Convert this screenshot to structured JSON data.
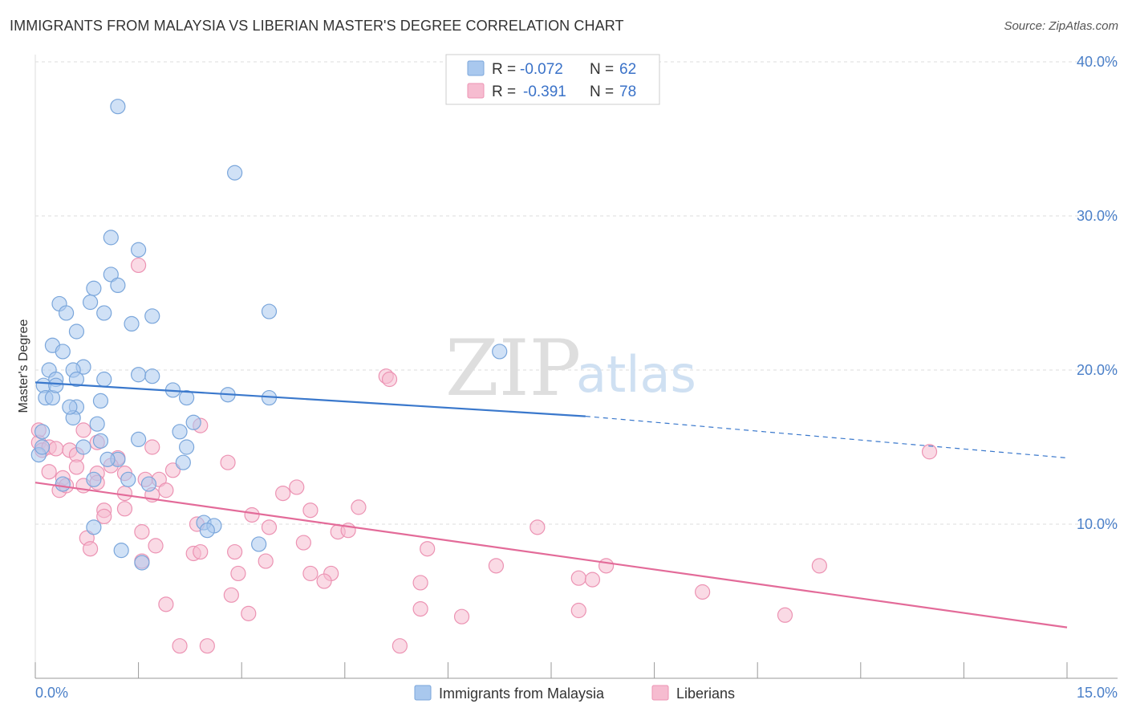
{
  "header": {
    "title": "IMMIGRANTS FROM MALAYSIA VS LIBERIAN MASTER'S DEGREE CORRELATION CHART",
    "source": "Source: ZipAtlas.com"
  },
  "watermark": {
    "zip": "ZIP",
    "atlas": "atlas"
  },
  "colors": {
    "blue_fill": "#a9c8ee",
    "blue_stroke": "#7aa6db",
    "blue_line": "#3a78cc",
    "pink_fill": "#f6bcd0",
    "pink_stroke": "#ec93b3",
    "pink_line": "#e36b99",
    "grid": "#dddddd",
    "tick_text": "#4a7fc8"
  },
  "legend": {
    "rows": [
      {
        "r_label": "R =",
        "r_value": "-0.072",
        "n_label": "N =",
        "n_value": "62"
      },
      {
        "r_label": "R =",
        "r_value": "-0.391",
        "n_label": "N =",
        "n_value": "78"
      }
    ]
  },
  "chart_data": {
    "type": "scatter",
    "title": "IMMIGRANTS FROM MALAYSIA VS LIBERIAN MASTER'S DEGREE CORRELATION CHART",
    "xlabel": "",
    "ylabel": "Master's Degree",
    "xlim": [
      0,
      15
    ],
    "ylim": [
      0,
      40
    ],
    "x_tick_labels": [
      "0.0%",
      "15.0%"
    ],
    "y_ticks": [
      10,
      20,
      30,
      40
    ],
    "y_tick_labels": [
      "10.0%",
      "20.0%",
      "30.0%",
      "40.0%"
    ],
    "grid": true,
    "legend_position": "top-center",
    "series": [
      {
        "name": "Immigrants from Malaysia",
        "color": "#a9c8ee",
        "r": -0.072,
        "n": 62,
        "trend": {
          "x0": 0.0,
          "y0": 19.2,
          "x1": 8.0,
          "y1": 17.0,
          "dashed_to_x": 15.0,
          "dashed_to_y": 14.3
        },
        "points": [
          [
            1.2,
            37.1
          ],
          [
            2.9,
            32.8
          ],
          [
            1.1,
            28.6
          ],
          [
            1.5,
            27.8
          ],
          [
            1.1,
            26.2
          ],
          [
            0.85,
            25.3
          ],
          [
            1.2,
            25.5
          ],
          [
            0.35,
            24.3
          ],
          [
            0.8,
            24.4
          ],
          [
            0.45,
            23.7
          ],
          [
            1.0,
            23.7
          ],
          [
            1.7,
            23.5
          ],
          [
            1.4,
            23.0
          ],
          [
            3.4,
            23.8
          ],
          [
            0.6,
            22.5
          ],
          [
            0.25,
            21.6
          ],
          [
            0.4,
            21.2
          ],
          [
            0.7,
            20.2
          ],
          [
            0.2,
            20.0
          ],
          [
            0.55,
            20.0
          ],
          [
            1.5,
            19.7
          ],
          [
            1.7,
            19.6
          ],
          [
            0.3,
            19.4
          ],
          [
            0.6,
            19.4
          ],
          [
            1.0,
            19.4
          ],
          [
            0.12,
            19.0
          ],
          [
            2.0,
            18.7
          ],
          [
            2.8,
            18.4
          ],
          [
            3.4,
            18.2
          ],
          [
            0.15,
            18.2
          ],
          [
            0.95,
            18.0
          ],
          [
            0.6,
            17.6
          ],
          [
            0.55,
            16.9
          ],
          [
            2.2,
            18.2
          ],
          [
            0.9,
            16.5
          ],
          [
            2.3,
            16.6
          ],
          [
            2.1,
            16.0
          ],
          [
            1.5,
            15.5
          ],
          [
            0.7,
            15.0
          ],
          [
            0.95,
            15.4
          ],
          [
            2.2,
            15.0
          ],
          [
            1.2,
            14.2
          ],
          [
            0.05,
            14.5
          ],
          [
            0.1,
            15.0
          ],
          [
            1.05,
            14.2
          ],
          [
            2.15,
            14.0
          ],
          [
            1.35,
            12.9
          ],
          [
            0.4,
            12.6
          ],
          [
            1.65,
            12.6
          ],
          [
            0.85,
            12.9
          ],
          [
            2.45,
            10.1
          ],
          [
            2.6,
            9.9
          ],
          [
            0.85,
            9.8
          ],
          [
            2.5,
            9.6
          ],
          [
            3.25,
            8.7
          ],
          [
            1.25,
            8.3
          ],
          [
            1.55,
            7.5
          ],
          [
            6.75,
            21.2
          ],
          [
            0.1,
            16.0
          ],
          [
            0.25,
            18.2
          ],
          [
            0.3,
            19.0
          ],
          [
            0.5,
            17.6
          ]
        ]
      },
      {
        "name": "Liberians",
        "color": "#f6bcd0",
        "r": -0.391,
        "n": 78,
        "trend": {
          "x0": 0.0,
          "y0": 12.7,
          "x1": 15.0,
          "y1": 3.3
        },
        "points": [
          [
            1.5,
            26.8
          ],
          [
            5.1,
            19.6
          ],
          [
            5.15,
            19.4
          ],
          [
            13.0,
            14.7
          ],
          [
            0.05,
            15.3
          ],
          [
            0.1,
            14.8
          ],
          [
            0.2,
            15.0
          ],
          [
            0.3,
            14.9
          ],
          [
            0.5,
            14.8
          ],
          [
            0.6,
            14.5
          ],
          [
            0.7,
            16.1
          ],
          [
            0.9,
            15.3
          ],
          [
            1.2,
            14.3
          ],
          [
            1.7,
            15.0
          ],
          [
            2.4,
            16.4
          ],
          [
            2.8,
            14.0
          ],
          [
            0.2,
            13.4
          ],
          [
            0.4,
            13.0
          ],
          [
            0.6,
            13.7
          ],
          [
            0.9,
            13.3
          ],
          [
            1.1,
            13.8
          ],
          [
            1.3,
            13.3
          ],
          [
            1.6,
            12.9
          ],
          [
            2.0,
            13.5
          ],
          [
            0.35,
            12.2
          ],
          [
            0.45,
            12.5
          ],
          [
            0.7,
            12.5
          ],
          [
            0.9,
            12.7
          ],
          [
            1.8,
            12.9
          ],
          [
            1.9,
            12.2
          ],
          [
            3.6,
            12.0
          ],
          [
            3.8,
            12.4
          ],
          [
            1.7,
            11.9
          ],
          [
            1.0,
            10.9
          ],
          [
            1.3,
            11.0
          ],
          [
            3.15,
            10.6
          ],
          [
            4.0,
            10.9
          ],
          [
            4.7,
            11.1
          ],
          [
            1.0,
            10.5
          ],
          [
            2.35,
            10.0
          ],
          [
            3.4,
            9.8
          ],
          [
            4.4,
            9.5
          ],
          [
            4.55,
            9.6
          ],
          [
            7.3,
            9.8
          ],
          [
            0.75,
            9.1
          ],
          [
            1.55,
            9.5
          ],
          [
            1.75,
            8.6
          ],
          [
            3.9,
            8.8
          ],
          [
            5.7,
            8.4
          ],
          [
            0.8,
            8.4
          ],
          [
            2.3,
            8.1
          ],
          [
            2.4,
            8.2
          ],
          [
            2.9,
            8.2
          ],
          [
            1.55,
            7.6
          ],
          [
            3.35,
            7.6
          ],
          [
            6.7,
            7.3
          ],
          [
            8.3,
            7.3
          ],
          [
            11.4,
            7.3
          ],
          [
            2.95,
            6.8
          ],
          [
            4.0,
            6.8
          ],
          [
            4.3,
            6.8
          ],
          [
            4.2,
            6.3
          ],
          [
            5.6,
            6.2
          ],
          [
            7.9,
            6.5
          ],
          [
            8.1,
            6.4
          ],
          [
            9.7,
            5.6
          ],
          [
            2.85,
            5.4
          ],
          [
            1.9,
            4.8
          ],
          [
            5.6,
            4.5
          ],
          [
            7.9,
            4.4
          ],
          [
            3.1,
            4.2
          ],
          [
            6.2,
            4.0
          ],
          [
            10.9,
            4.1
          ],
          [
            2.1,
            2.1
          ],
          [
            2.5,
            2.1
          ],
          [
            5.3,
            2.1
          ],
          [
            0.05,
            16.1
          ],
          [
            1.3,
            12.0
          ]
        ]
      }
    ]
  }
}
